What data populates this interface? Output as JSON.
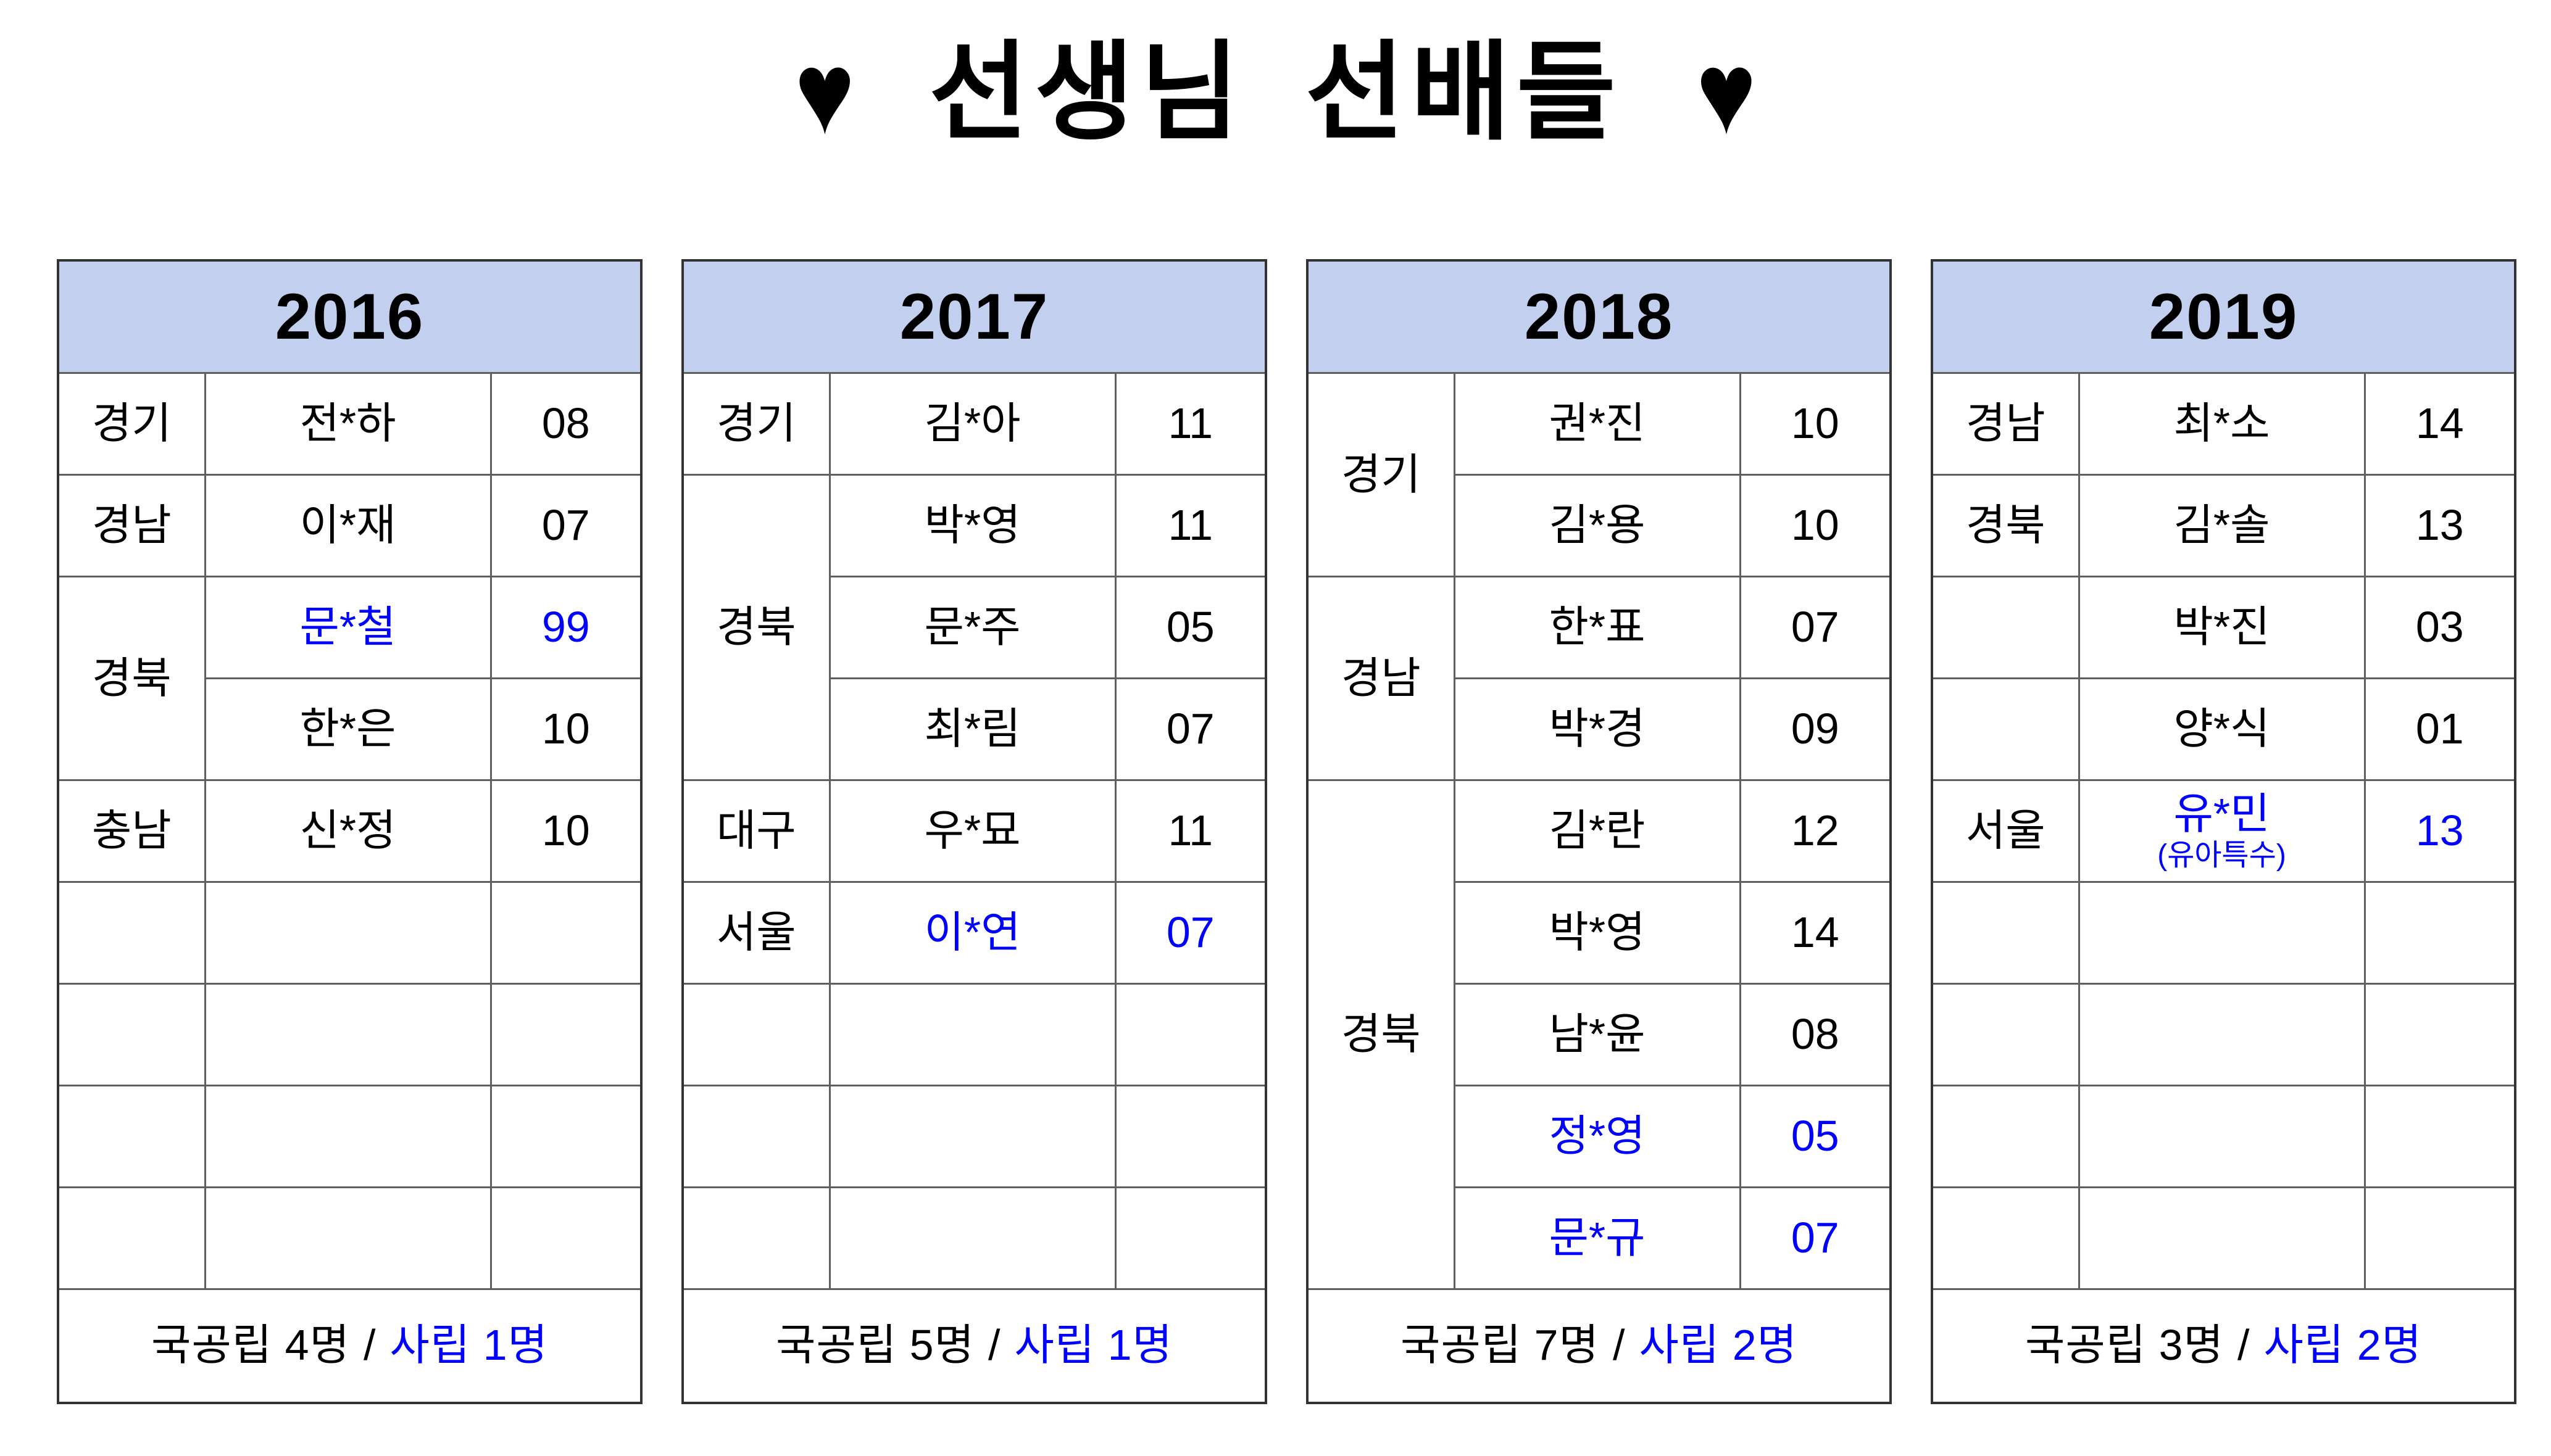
{
  "page": {
    "title": "선생님 선배들",
    "heart": "♥"
  },
  "colors": {
    "accent_blue": "#0000ff",
    "header_fill": "#c3cfee"
  },
  "tables": [
    {
      "year": "2016",
      "rows": [
        {
          "region": "경기",
          "span": 1,
          "name": "전*하",
          "count": "08"
        },
        {
          "region": "경남",
          "span": 1,
          "name": "이*재",
          "count": "07"
        },
        {
          "region": "경북",
          "span": 2,
          "name": "문*철",
          "count": "99",
          "blue": true
        },
        {
          "cont": true,
          "name": "한*은",
          "count": "10"
        },
        {
          "region": "충남",
          "span": 1,
          "name": "신*정",
          "count": "10"
        },
        {
          "region": "",
          "span": 1,
          "name": "",
          "count": ""
        },
        {
          "region": "",
          "span": 1,
          "name": "",
          "count": ""
        },
        {
          "region": "",
          "span": 1,
          "name": "",
          "count": ""
        },
        {
          "region": "",
          "span": 1,
          "name": "",
          "count": ""
        }
      ],
      "footer": {
        "public": "국공립 4명",
        "slash": "/",
        "private": "사립 1명"
      }
    },
    {
      "year": "2017",
      "rows": [
        {
          "region": "경기",
          "span": 1,
          "name": "김*아",
          "count": "11"
        },
        {
          "region": "경북",
          "span": 3,
          "name": "박*영",
          "count": "11"
        },
        {
          "cont": true,
          "name": "문*주",
          "count": "05"
        },
        {
          "cont": true,
          "name": "최*림",
          "count": "07"
        },
        {
          "region": "대구",
          "span": 1,
          "name": "우*묘",
          "count": "11"
        },
        {
          "region": "서울",
          "span": 1,
          "name": "이*연",
          "count": "07",
          "blue": true
        },
        {
          "region": "",
          "span": 1,
          "name": "",
          "count": ""
        },
        {
          "region": "",
          "span": 1,
          "name": "",
          "count": ""
        },
        {
          "region": "",
          "span": 1,
          "name": "",
          "count": ""
        }
      ],
      "footer": {
        "public": "국공립 5명",
        "slash": "/",
        "private": "사립 1명"
      }
    },
    {
      "year": "2018",
      "rows": [
        {
          "region": "경기",
          "span": 2,
          "name": "권*진",
          "count": "10"
        },
        {
          "cont": true,
          "name": "김*용",
          "count": "10"
        },
        {
          "region": "경남",
          "span": 2,
          "name": "한*표",
          "count": "07"
        },
        {
          "cont": true,
          "name": "박*경",
          "count": "09"
        },
        {
          "region": "경북",
          "span": 5,
          "name": "김*란",
          "count": "12"
        },
        {
          "cont": true,
          "name": "박*영",
          "count": "14"
        },
        {
          "cont": true,
          "name": "남*윤",
          "count": "08"
        },
        {
          "cont": true,
          "name": "정*영",
          "count": "05",
          "blue": true
        },
        {
          "cont": true,
          "name": "문*규",
          "count": "07",
          "blue": true
        }
      ],
      "footer": {
        "public": "국공립 7명",
        "slash": "/",
        "private": "사립 2명"
      }
    },
    {
      "year": "2019",
      "rows": [
        {
          "region": "경남",
          "span": 1,
          "name": "최*소",
          "count": "14"
        },
        {
          "region": "경북",
          "span": 1,
          "name": "김*솔",
          "count": "13"
        },
        {
          "region": "",
          "span": 1,
          "name": "박*진",
          "count": "03"
        },
        {
          "region": "",
          "span": 1,
          "name": "양*식",
          "count": "01"
        },
        {
          "region": "서울",
          "span": 1,
          "name": "유*민",
          "note": "(유아특수)",
          "count": "13",
          "blue": true
        },
        {
          "region": "",
          "span": 1,
          "name": "",
          "count": ""
        },
        {
          "region": "",
          "span": 1,
          "name": "",
          "count": ""
        },
        {
          "region": "",
          "span": 1,
          "name": "",
          "count": ""
        },
        {
          "region": "",
          "span": 1,
          "name": "",
          "count": ""
        }
      ],
      "footer": {
        "public": "국공립 3명",
        "slash": "/",
        "private": "사립 2명"
      }
    }
  ]
}
